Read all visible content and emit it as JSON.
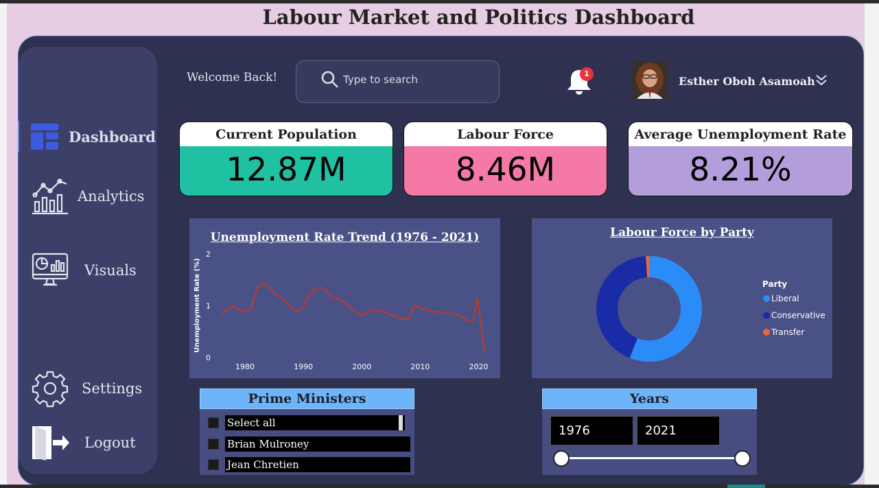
{
  "title": "Labour Market and Politics Dashboard",
  "sidebar": {
    "items": [
      {
        "label": "Dashboard",
        "icon": "dashboard-icon"
      },
      {
        "label": "Analytics",
        "icon": "analytics-icon"
      },
      {
        "label": "Visuals",
        "icon": "visuals-icon"
      },
      {
        "label": "Settings",
        "icon": "settings-icon"
      },
      {
        "label": "Logout",
        "icon": "logout-icon"
      }
    ]
  },
  "header": {
    "welcome": "Welcome Back!",
    "search_placeholder": "Type to search",
    "notifications_count": "1",
    "user_name": "Esther Oboh Asamoah"
  },
  "kpis": [
    {
      "title": "Current Population",
      "value": "12.87M",
      "color": "#20c1a2"
    },
    {
      "title": "Labour Force",
      "value": "8.46M",
      "color": "#f579a6"
    },
    {
      "title": "Average Unemployment Rate",
      "value": "8.21%",
      "color": "#b39ddb"
    }
  ],
  "chart_data": [
    {
      "type": "line",
      "title": "Unemployment Rate Trend (1976 - 2021)",
      "ylabel": "Unemployment Rate (%)",
      "xlabel": "",
      "x_ticks": [
        "1980",
        "1990",
        "2000",
        "2010",
        "2020"
      ],
      "y_ticks": [
        "0",
        "1",
        "2"
      ],
      "ylim": [
        0,
        2
      ],
      "xlim": [
        1976,
        2021
      ],
      "grid": false,
      "line_color": "#c0392b",
      "series": [
        {
          "x": [
            1976,
            1977,
            1978,
            1979,
            1980,
            1981,
            1982,
            1983,
            1984,
            1985,
            1986,
            1987,
            1988,
            1989,
            1990,
            1991,
            1992,
            1993,
            1994,
            1995,
            1996,
            1997,
            1998,
            1999,
            2000,
            2001,
            2002,
            2003,
            2004,
            2005,
            2006,
            2007,
            2008,
            2009,
            2010,
            2011,
            2012,
            2013,
            2014,
            2015,
            2016,
            2017,
            2018,
            2019,
            2019.8,
            2020.3,
            2021
          ],
          "y": [
            0.83,
            0.94,
            1.0,
            0.92,
            0.9,
            0.93,
            1.32,
            1.44,
            1.38,
            1.25,
            1.16,
            1.07,
            0.96,
            0.9,
            0.98,
            1.22,
            1.33,
            1.36,
            1.28,
            1.15,
            1.14,
            1.07,
            0.97,
            0.88,
            0.81,
            0.87,
            0.92,
            0.91,
            0.87,
            0.83,
            0.78,
            0.74,
            0.75,
            1.0,
            0.97,
            0.92,
            0.9,
            0.88,
            0.86,
            0.86,
            0.84,
            0.79,
            0.72,
            0.69,
            1.15,
            0.73,
            0.1
          ]
        }
      ]
    },
    {
      "type": "pie",
      "title": "Labour Force by Party",
      "legend_title": "Party",
      "legend_position": "right",
      "labels": [
        "Liberal",
        "Conservative",
        "Transfer"
      ],
      "values": [
        56,
        43,
        1
      ],
      "colors": [
        "#2b8cf7",
        "#1a2ba8",
        "#e8683a"
      ]
    }
  ],
  "slicers": {
    "prime_ministers": {
      "title": "Prime Ministers",
      "items": [
        "Select all",
        "Brian Mulroney",
        "Jean Chretien"
      ]
    },
    "years": {
      "title": "Years",
      "start": "1976",
      "end": "2021"
    }
  }
}
